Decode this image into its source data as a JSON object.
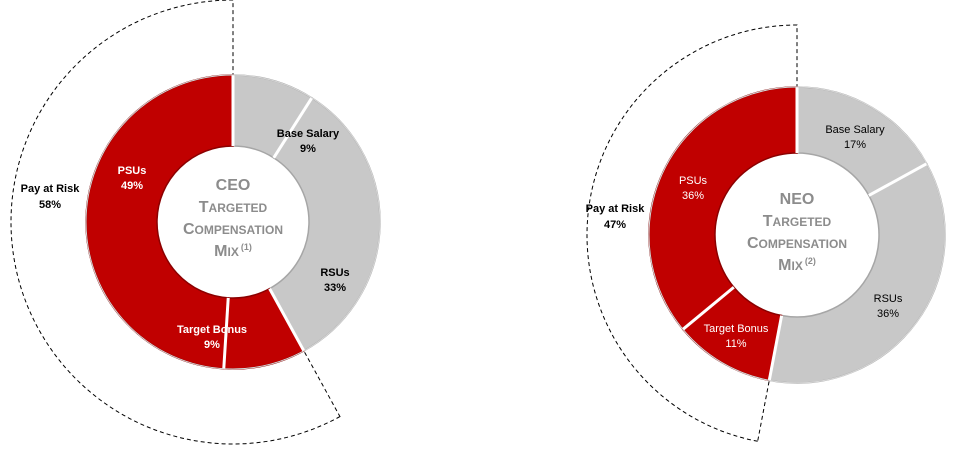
{
  "chart_data": [
    {
      "type": "pie",
      "style": "donut",
      "segments": [
        {
          "label": "Base Salary",
          "value": 9,
          "display": "9%",
          "color": "#c8c8c8"
        },
        {
          "label": "RSUs",
          "value": 33,
          "display": "33%",
          "color": "#c8c8c8"
        },
        {
          "label": "Target Bonus",
          "value": 9,
          "display": "9%",
          "color": "#c00000"
        },
        {
          "label": "PSUs",
          "value": 49,
          "display": "49%",
          "color": "#c00000"
        }
      ],
      "center": {
        "line1": "CEO",
        "line2_big": "T",
        "line2_small": "ARGETED",
        "line3_big": "C",
        "line3_small": "OMPENSATION",
        "line4_big": "M",
        "line4_small": "IX",
        "footnote": "(1)"
      },
      "pay_at_risk": {
        "label": "Pay at Risk",
        "value": 58,
        "display": "58%"
      }
    },
    {
      "type": "pie",
      "style": "donut",
      "segments": [
        {
          "label": "Base Salary",
          "value": 17,
          "display": "17%",
          "color": "#c8c8c8"
        },
        {
          "label": "RSUs",
          "value": 36,
          "display": "36%",
          "color": "#c8c8c8"
        },
        {
          "label": "Target Bonus",
          "value": 11,
          "display": "11%",
          "color": "#c00000"
        },
        {
          "label": "PSUs",
          "value": 36,
          "display": "36%",
          "color": "#c00000"
        }
      ],
      "center": {
        "line1": "NEO",
        "line2_big": "T",
        "line2_small": "ARGETED",
        "line3_big": "C",
        "line3_small": "OMPENSATION",
        "line4_big": "M",
        "line4_small": "IX",
        "footnote": "(2)"
      },
      "pay_at_risk": {
        "label": "Pay at Risk",
        "value": 47,
        "display": "47%"
      }
    }
  ]
}
